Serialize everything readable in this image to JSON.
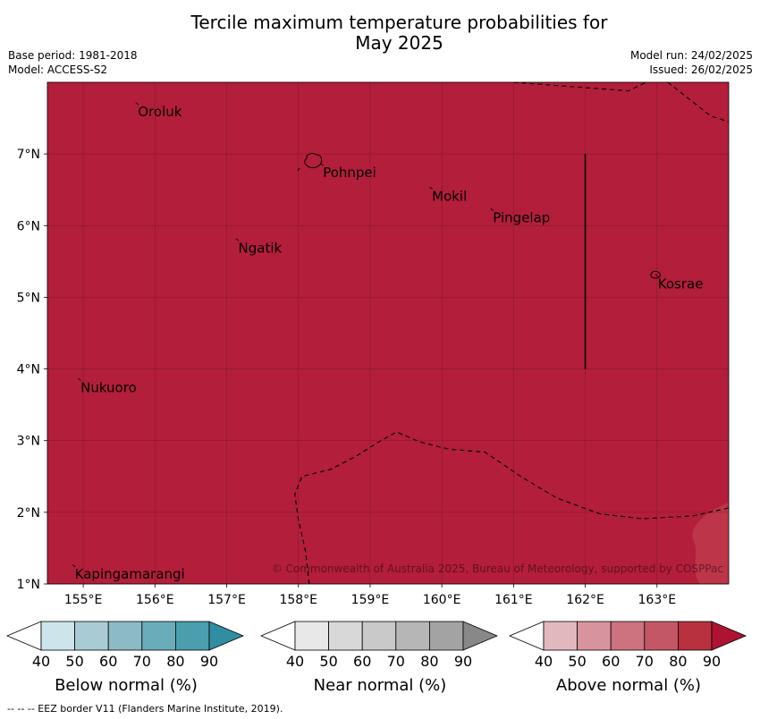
{
  "title": {
    "line1": "Tercile maximum temperature probabilities for",
    "line2": "May 2025"
  },
  "meta": {
    "base_period": "Base period: 1981-2018",
    "model": "Model: ACCESS-S2",
    "model_run": "Model run: 24/02/2025",
    "issued": "Issued: 26/02/2025"
  },
  "map": {
    "lon_range": [
      154.5,
      164.0
    ],
    "lat_range": [
      1.0,
      8.0
    ],
    "fill_color": "#b31e3a",
    "lighter_patch_color": "#bd3549",
    "grid": true,
    "lon_ticks": [
      {
        "value": 155,
        "label": "155°E"
      },
      {
        "value": 156,
        "label": "156°E"
      },
      {
        "value": 157,
        "label": "157°E"
      },
      {
        "value": 158,
        "label": "158°E"
      },
      {
        "value": 159,
        "label": "159°E"
      },
      {
        "value": 160,
        "label": "160°E"
      },
      {
        "value": 161,
        "label": "161°E"
      },
      {
        "value": 162,
        "label": "162°E"
      },
      {
        "value": 163,
        "label": "163°E"
      }
    ],
    "lat_ticks": [
      {
        "value": 1,
        "label": "1°N"
      },
      {
        "value": 2,
        "label": "2°N"
      },
      {
        "value": 3,
        "label": "3°N"
      },
      {
        "value": 4,
        "label": "4°N"
      },
      {
        "value": 5,
        "label": "5°N"
      },
      {
        "value": 6,
        "label": "6°N"
      },
      {
        "value": 7,
        "label": "7°N"
      }
    ],
    "places": [
      {
        "name": "Oroluk",
        "lon": 155.75,
        "lat": 7.7
      },
      {
        "name": "Pohnpei",
        "lon": 158.33,
        "lat": 6.85
      },
      {
        "name": "Mokil",
        "lon": 159.85,
        "lat": 6.52
      },
      {
        "name": "Pingelap",
        "lon": 160.7,
        "lat": 6.22
      },
      {
        "name": "Ngatik",
        "lon": 157.15,
        "lat": 5.8
      },
      {
        "name": "Kosrae",
        "lon": 163.0,
        "lat": 5.3
      },
      {
        "name": "Nukuoro",
        "lon": 154.95,
        "lat": 3.85
      },
      {
        "name": "Kapingamarangi",
        "lon": 154.87,
        "lat": 1.25
      }
    ],
    "eez_lines": [
      [
        [
          161.0,
          8.0
        ],
        [
          162.6,
          7.88
        ],
        [
          162.85,
          8.0
        ]
      ],
      [
        [
          163.15,
          8.0
        ],
        [
          163.75,
          7.53
        ],
        [
          164.0,
          7.45
        ]
      ],
      [
        [
          158.15,
          1.0
        ],
        [
          158.1,
          1.45
        ],
        [
          158.0,
          1.9
        ],
        [
          157.95,
          2.25
        ],
        [
          158.05,
          2.5
        ],
        [
          158.45,
          2.6
        ],
        [
          158.8,
          2.78
        ],
        [
          159.15,
          3.0
        ],
        [
          159.37,
          3.12
        ],
        [
          159.7,
          2.98
        ],
        [
          160.1,
          2.88
        ],
        [
          160.6,
          2.84
        ],
        [
          161.1,
          2.5
        ],
        [
          161.6,
          2.2
        ],
        [
          162.2,
          1.98
        ],
        [
          162.8,
          1.91
        ],
        [
          163.5,
          1.95
        ],
        [
          164.0,
          2.06
        ]
      ]
    ],
    "boundary_line": [
      [
        162.0,
        7.0
      ],
      [
        162.0,
        4.0
      ]
    ],
    "copyright": "© Commonwealth of Australia 2025, Bureau of Meteorology, supported by COSPPac"
  },
  "legends": [
    {
      "label": "Below normal (%)",
      "ticks": [
        "40",
        "50",
        "60",
        "70",
        "80",
        "90"
      ],
      "colors": [
        "#ffffff",
        "#cde4ea",
        "#a9cbd3",
        "#8cbac5",
        "#6bacbb",
        "#4a9ead",
        "#318ea2"
      ]
    },
    {
      "label": "Near normal (%)",
      "ticks": [
        "40",
        "50",
        "60",
        "70",
        "80",
        "90"
      ],
      "colors": [
        "#ffffff",
        "#e8e8e8",
        "#d8d8d8",
        "#c9c9c9",
        "#b6b6b6",
        "#a3a3a3",
        "#888888"
      ]
    },
    {
      "label": "Above normal (%)",
      "ticks": [
        "40",
        "50",
        "60",
        "70",
        "80",
        "90"
      ],
      "colors": [
        "#ffffff",
        "#e2b8bf",
        "#d8949e",
        "#cd737f",
        "#c35766",
        "#b8313f",
        "#ae1431"
      ]
    }
  ],
  "footer": "--  --  -- EEZ border V11 (Flanders Marine Institute, 2019)."
}
